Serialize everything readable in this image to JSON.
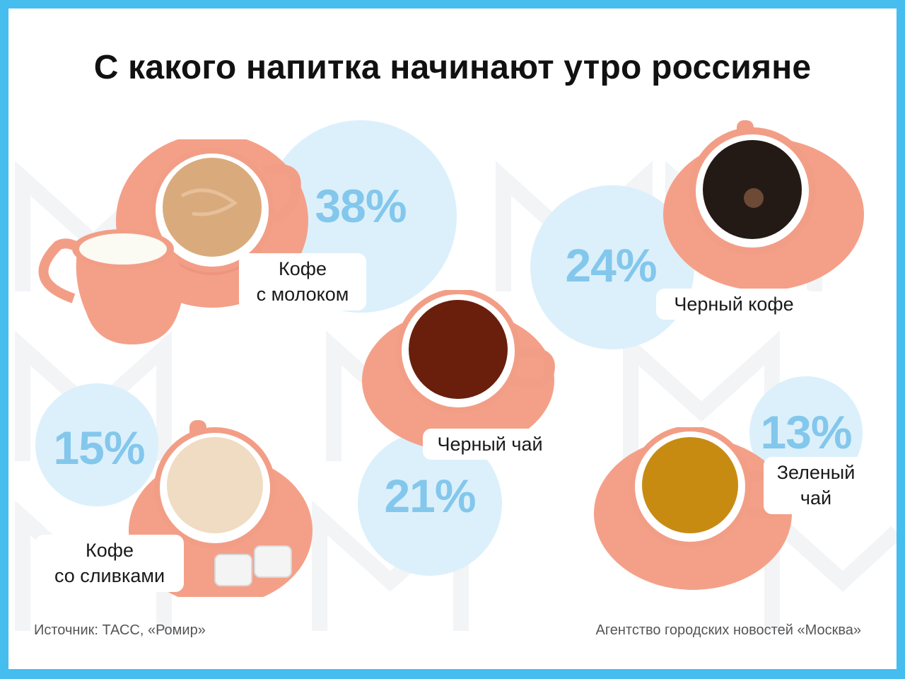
{
  "title": "С какого напитка начинают утро россияне",
  "chart_data": {
    "type": "bar",
    "title": "С какого напитка начинают утро россияне",
    "categories": [
      "Кофе с молоком",
      "Черный кофе",
      "Черный чай",
      "Кофе со сливками",
      "Зеленый чай"
    ],
    "values": [
      38,
      24,
      21,
      15,
      13
    ],
    "unit": "%",
    "items": [
      {
        "id": "coffee-milk",
        "label_lines": [
          "Кофе",
          "с молоком"
        ],
        "value": 38,
        "value_text": "38%",
        "drink_color": "#d9ab7c"
      },
      {
        "id": "black-coffee",
        "label_lines": [
          "Черный кофе"
        ],
        "value": 24,
        "value_text": "24%",
        "drink_color": "#241a15"
      },
      {
        "id": "black-tea",
        "label_lines": [
          "Черный чай"
        ],
        "value": 21,
        "value_text": "21%",
        "drink_color": "#6a1f0c"
      },
      {
        "id": "coffee-cream",
        "label_lines": [
          "Кофе",
          "со сливками"
        ],
        "value": 15,
        "value_text": "15%",
        "drink_color": "#f0dcc2"
      },
      {
        "id": "green-tea",
        "label_lines": [
          "Зеленый",
          "чай"
        ],
        "value": 13,
        "value_text": "13%",
        "drink_color": "#c88b12"
      }
    ]
  },
  "footer": {
    "source": "Источник: ТАСС, «Ромир»",
    "agency": "Агентство городских новостей «Москва»"
  },
  "colors": {
    "frame": "#45bdee",
    "bubble": "#dcf0fb",
    "percent_text": "#83c7ec",
    "saucer": "#f4a088",
    "cup_outer": "#f29e86"
  }
}
